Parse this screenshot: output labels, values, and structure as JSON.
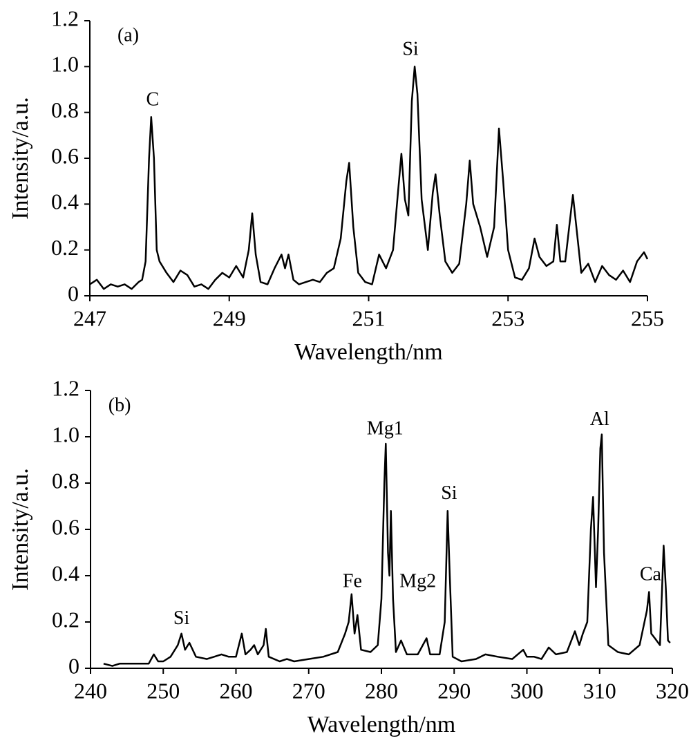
{
  "chart_data": [
    {
      "type": "line",
      "color": "#000000",
      "xlabel": "Wavelength/nm",
      "ylabel": "Intensity/a.u.",
      "xlim": [
        247,
        255
      ],
      "xticks": [
        247,
        249,
        251,
        253,
        255
      ],
      "ylim": [
        0,
        1.2
      ],
      "yticks": [
        0,
        0.2,
        0.4,
        0.6,
        0.8,
        {
          "value": 1,
          "label": "1.0"
        },
        1.2
      ],
      "annotations": [
        {
          "text": "(a)",
          "x": 247.55,
          "y": 1.13
        },
        {
          "text": "C",
          "x": 247.9,
          "y": 0.85
        },
        {
          "text": "Si",
          "x": 251.6,
          "y": 1.07
        }
      ],
      "x": [
        247.0,
        247.1,
        247.2,
        247.3,
        247.4,
        247.5,
        247.6,
        247.7,
        247.75,
        247.8,
        247.85,
        247.88,
        247.92,
        247.96,
        248.0,
        248.1,
        248.2,
        248.3,
        248.4,
        248.5,
        248.6,
        248.7,
        248.8,
        248.9,
        249.0,
        249.1,
        249.2,
        249.28,
        249.33,
        249.38,
        249.45,
        249.55,
        249.65,
        249.75,
        249.8,
        249.85,
        249.92,
        250.0,
        250.1,
        250.2,
        250.3,
        250.4,
        250.5,
        250.6,
        250.68,
        250.72,
        250.78,
        250.85,
        250.95,
        251.05,
        251.15,
        251.25,
        251.35,
        251.42,
        251.47,
        251.52,
        251.57,
        251.62,
        251.66,
        251.7,
        251.76,
        251.85,
        251.92,
        251.96,
        252.02,
        252.1,
        252.2,
        252.3,
        252.4,
        252.45,
        252.5,
        252.6,
        252.7,
        252.8,
        252.87,
        252.93,
        253.0,
        253.1,
        253.2,
        253.3,
        253.38,
        253.45,
        253.55,
        253.65,
        253.7,
        253.75,
        253.82,
        253.9,
        253.93,
        253.98,
        254.05,
        254.15,
        254.25,
        254.35,
        254.45,
        254.55,
        254.65,
        254.75,
        254.85,
        254.95,
        255.0
      ],
      "values": [
        0.05,
        0.07,
        0.03,
        0.05,
        0.04,
        0.05,
        0.03,
        0.06,
        0.07,
        0.15,
        0.6,
        0.78,
        0.6,
        0.2,
        0.15,
        0.1,
        0.06,
        0.11,
        0.09,
        0.04,
        0.05,
        0.03,
        0.07,
        0.1,
        0.08,
        0.13,
        0.08,
        0.2,
        0.36,
        0.18,
        0.06,
        0.05,
        0.12,
        0.18,
        0.12,
        0.18,
        0.07,
        0.05,
        0.06,
        0.07,
        0.06,
        0.1,
        0.12,
        0.25,
        0.5,
        0.58,
        0.3,
        0.1,
        0.06,
        0.05,
        0.18,
        0.12,
        0.2,
        0.45,
        0.62,
        0.42,
        0.35,
        0.85,
        1.0,
        0.88,
        0.42,
        0.2,
        0.45,
        0.53,
        0.35,
        0.15,
        0.1,
        0.14,
        0.4,
        0.59,
        0.4,
        0.3,
        0.17,
        0.3,
        0.73,
        0.5,
        0.2,
        0.08,
        0.07,
        0.12,
        0.25,
        0.17,
        0.13,
        0.15,
        0.31,
        0.15,
        0.15,
        0.36,
        0.44,
        0.3,
        0.1,
        0.14,
        0.06,
        0.13,
        0.09,
        0.07,
        0.11,
        0.06,
        0.15,
        0.19,
        0.16
      ]
    },
    {
      "type": "line",
      "color": "#000000",
      "xlabel": "Wavelength/nm",
      "ylabel": "Intensity/a.u.",
      "xlim": [
        240,
        320
      ],
      "xticks": [
        240,
        250,
        260,
        270,
        280,
        290,
        300,
        310,
        320
      ],
      "ylim": [
        0,
        1.2
      ],
      "yticks": [
        0,
        0.2,
        0.4,
        0.6,
        0.8,
        {
          "value": 1,
          "label": "1.0"
        },
        1.2
      ],
      "annotations": [
        {
          "text": "(b)",
          "x": 244,
          "y": 1.13
        },
        {
          "text": "Si",
          "x": 252.5,
          "y": 0.21
        },
        {
          "text": "Fe",
          "x": 276,
          "y": 0.37
        },
        {
          "text": "Mg1",
          "x": 280.5,
          "y": 1.03
        },
        {
          "text": "Mg2",
          "x": 285,
          "y": 0.37
        },
        {
          "text": "Si",
          "x": 289.3,
          "y": 0.75
        },
        {
          "text": "Al",
          "x": 310,
          "y": 1.07
        },
        {
          "text": "Ca",
          "x": 317,
          "y": 0.4
        }
      ],
      "x": [
        241.8,
        243,
        244,
        245,
        246,
        247,
        248,
        248.7,
        249.3,
        250,
        251,
        252,
        252.5,
        253,
        253.6,
        254.5,
        256,
        257,
        258,
        259,
        260,
        260.8,
        261.3,
        262,
        262.5,
        263,
        263.8,
        264.1,
        264.5,
        266,
        267,
        268,
        270,
        272,
        274,
        275,
        275.5,
        275.9,
        276.3,
        276.7,
        277.2,
        278.5,
        279.5,
        280,
        280.4,
        280.6,
        280.9,
        281.1,
        281.3,
        281.6,
        282,
        282.7,
        283.5,
        285,
        286.2,
        286.7,
        288,
        288.7,
        289.1,
        289.4,
        289.8,
        291,
        293,
        294.3,
        296,
        298,
        299.5,
        300,
        301,
        302,
        303,
        304,
        305.5,
        306.6,
        307.2,
        307.7,
        308.3,
        308.8,
        309.1,
        309.5,
        309.8,
        310.1,
        310.3,
        310.6,
        311.2,
        312.5,
        314,
        315.5,
        316.5,
        316.8,
        317.1,
        317.6,
        318.3,
        318.8,
        319.1,
        319.4,
        319.7
      ],
      "values": [
        0.02,
        0.01,
        0.02,
        0.02,
        0.02,
        0.02,
        0.02,
        0.06,
        0.03,
        0.03,
        0.05,
        0.1,
        0.15,
        0.08,
        0.11,
        0.05,
        0.04,
        0.05,
        0.06,
        0.05,
        0.05,
        0.15,
        0.06,
        0.08,
        0.1,
        0.06,
        0.1,
        0.17,
        0.05,
        0.03,
        0.04,
        0.03,
        0.04,
        0.05,
        0.07,
        0.15,
        0.2,
        0.32,
        0.15,
        0.23,
        0.08,
        0.07,
        0.1,
        0.3,
        0.8,
        0.97,
        0.5,
        0.4,
        0.68,
        0.3,
        0.07,
        0.12,
        0.06,
        0.06,
        0.13,
        0.06,
        0.06,
        0.2,
        0.68,
        0.4,
        0.05,
        0.03,
        0.04,
        0.06,
        0.05,
        0.04,
        0.08,
        0.05,
        0.05,
        0.04,
        0.09,
        0.06,
        0.07,
        0.16,
        0.1,
        0.15,
        0.2,
        0.6,
        0.74,
        0.35,
        0.6,
        0.95,
        1.01,
        0.5,
        0.1,
        0.07,
        0.06,
        0.1,
        0.25,
        0.33,
        0.15,
        0.13,
        0.1,
        0.53,
        0.35,
        0.12,
        0.11
      ]
    }
  ]
}
